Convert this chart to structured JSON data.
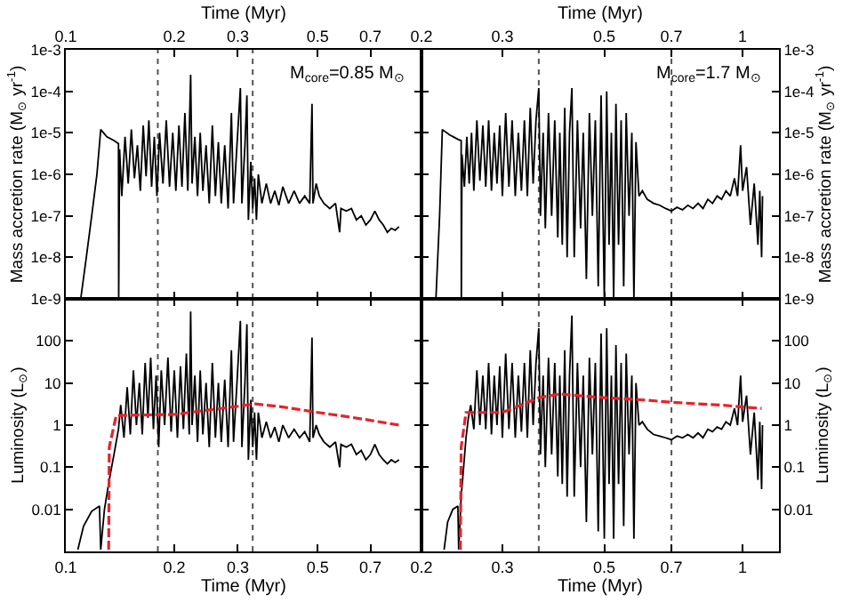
{
  "chart_data": [
    {
      "type": "line",
      "xlabel": "Time (Myr)",
      "ylabel": "Mass accretion rate (M$_{⊙}$ yr$^{-1}$)",
      "log": "xy",
      "xlim": [
        0.1,
        0.97
      ],
      "ylim": [
        1e-09,
        0.001
      ],
      "xticks": [
        0.1,
        0.2,
        0.3,
        0.5,
        0.7
      ],
      "yticks": [
        {
          "value": 1e-09,
          "label": "1e-9"
        },
        {
          "value": 1e-08,
          "label": "1e-8"
        },
        {
          "value": 1e-07,
          "label": "1e-7"
        },
        {
          "value": 1e-06,
          "label": "1e-6"
        },
        {
          "value": 1e-05,
          "label": "1e-5"
        },
        {
          "value": 0.0001,
          "label": "1e-4"
        },
        {
          "value": 0.001,
          "label": "1e-3"
        }
      ],
      "annotations": [
        "M$_{core}$=0.85 M$_{⊙}$"
      ],
      "ref_lines": [
        {
          "axis": "x",
          "value": 0.18,
          "color": "#555555",
          "line_style": "dotted"
        },
        {
          "axis": "x",
          "value": 0.33,
          "color": "#555555",
          "line_style": "dotted"
        }
      ],
      "series": [
        {
          "color": "#000000",
          "x": [
            0.11,
            0.114,
            0.118,
            0.122,
            0.125,
            0.13,
            0.136,
            0.14,
            0.1402,
            0.141,
            0.143,
            0.146,
            0.149,
            0.152,
            0.155,
            0.158,
            0.161,
            0.164,
            0.167,
            0.17,
            0.173,
            0.176,
            0.179,
            0.182,
            0.186,
            0.19,
            0.194,
            0.198,
            0.202,
            0.206,
            0.21,
            0.214,
            0.218,
            0.222,
            0.224,
            0.228,
            0.232,
            0.236,
            0.24,
            0.245,
            0.25,
            0.255,
            0.26,
            0.265,
            0.27,
            0.276,
            0.282,
            0.288,
            0.292,
            0.298,
            0.305,
            0.308,
            0.314,
            0.318,
            0.321,
            0.326,
            0.33,
            0.334,
            0.338,
            0.342,
            0.35,
            0.36,
            0.37,
            0.38,
            0.39,
            0.4,
            0.415,
            0.43,
            0.445,
            0.46,
            0.475,
            0.482,
            0.485,
            0.495,
            0.505,
            0.52,
            0.54,
            0.56,
            0.575,
            0.58,
            0.6,
            0.62,
            0.64,
            0.66,
            0.68,
            0.7,
            0.72,
            0.74,
            0.76,
            0.78,
            0.8,
            0.82,
            0.84
          ],
          "values": [
            1e-09,
            1e-08,
            1e-07,
            1e-06,
            1.2e-05,
            8e-06,
            6.5e-06,
            5.5e-06,
            1e-09,
            4e-06,
            3e-07,
            8e-06,
            6e-07,
            1.2e-05,
            8e-07,
            5e-06,
            4e-07,
            1.5e-05,
            9e-07,
            2e-05,
            5e-07,
            8e-06,
            3e-07,
            1e-05,
            6e-07,
            2e-05,
            5e-07,
            1e-05,
            4e-07,
            1.5e-05,
            5e-07,
            3e-05,
            4e-07,
            0.00025,
            6e-07,
            8e-06,
            3e-07,
            1e-05,
            4e-07,
            5e-06,
            2e-07,
            1.5e-05,
            3e-07,
            6e-06,
            2e-07,
            5e-06,
            1.5e-07,
            3e-05,
            2e-07,
            4e-06,
            0.00012,
            2e-07,
            5e-06,
            8e-05,
            8e-08,
            2e-06,
            1.5e-07,
            8e-07,
            8e-08,
            1e-06,
            2e-07,
            6e-07,
            2e-07,
            4e-07,
            1.8e-07,
            5e-07,
            2e-07,
            4e-07,
            2e-07,
            3e-07,
            2e-07,
            5e-05,
            2e-07,
            6e-07,
            3e-07,
            2e-07,
            1.5e-07,
            2e-07,
            4e-08,
            1.5e-07,
            1.3e-07,
            1.5e-07,
            8e-08,
            1e-07,
            6e-08,
            8e-08,
            1.3e-07,
            8e-08,
            6e-08,
            4e-08,
            5e-08,
            4.5e-08,
            5.5e-08
          ]
        }
      ]
    },
    {
      "type": "line",
      "xlabel": "Time (Myr)",
      "ylabel": "Mass accretion rate (M$_{⊙}$ yr$^{-1}$)",
      "log": "xy",
      "xlim": [
        0.2,
        1.2
      ],
      "ylim": [
        1e-09,
        0.001
      ],
      "xticks": [
        0.2,
        0.3,
        0.5,
        0.7,
        1
      ],
      "yticks": [
        {
          "value": 1e-09,
          "label": "1e-9"
        },
        {
          "value": 1e-08,
          "label": "1e-8"
        },
        {
          "value": 1e-07,
          "label": "1e-7"
        },
        {
          "value": 1e-06,
          "label": "1e-6"
        },
        {
          "value": 1e-05,
          "label": "1e-5"
        },
        {
          "value": 0.0001,
          "label": "1e-4"
        },
        {
          "value": 0.001,
          "label": "1e-3"
        }
      ],
      "annotations": [
        "M$_{core}$=1.7 M$_{⊙}$"
      ],
      "ref_lines": [
        {
          "axis": "x",
          "value": 0.36,
          "color": "#555555",
          "line_style": "dotted"
        },
        {
          "axis": "x",
          "value": 0.7,
          "color": "#555555",
          "line_style": "dotted"
        }
      ],
      "series": [
        {
          "color": "#000000",
          "x": [
            0.215,
            0.219,
            0.222,
            0.23,
            0.24,
            0.244,
            0.2442,
            0.245,
            0.248,
            0.251,
            0.254,
            0.257,
            0.26,
            0.264,
            0.268,
            0.272,
            0.276,
            0.28,
            0.284,
            0.288,
            0.292,
            0.296,
            0.3,
            0.305,
            0.31,
            0.315,
            0.32,
            0.325,
            0.33,
            0.335,
            0.34,
            0.345,
            0.35,
            0.355,
            0.36,
            0.363,
            0.368,
            0.372,
            0.378,
            0.384,
            0.39,
            0.396,
            0.4,
            0.405,
            0.41,
            0.415,
            0.42,
            0.425,
            0.43,
            0.437,
            0.444,
            0.45,
            0.457,
            0.464,
            0.471,
            0.478,
            0.485,
            0.492,
            0.5,
            0.506,
            0.512,
            0.518,
            0.524,
            0.53,
            0.537,
            0.544,
            0.551,
            0.558,
            0.566,
            0.574,
            0.58,
            0.586,
            0.595,
            0.605,
            0.62,
            0.64,
            0.66,
            0.68,
            0.7,
            0.72,
            0.74,
            0.76,
            0.78,
            0.8,
            0.82,
            0.84,
            0.86,
            0.88,
            0.9,
            0.92,
            0.94,
            0.96,
            0.975,
            0.99,
            1.0,
            1.02,
            1.04,
            1.06,
            1.08,
            1.09,
            1.1,
            1.105
          ],
          "values": [
            1e-09,
            1e-07,
            1.2e-05,
            9e-06,
            7e-06,
            6.5e-06,
            1e-09,
            3e-06,
            5e-07,
            8e-06,
            6e-07,
            1e-05,
            4e-07,
            2e-05,
            7e-07,
            1.5e-05,
            5e-07,
            2e-05,
            4e-07,
            1e-05,
            6e-07,
            1.5e-05,
            3e-07,
            3e-05,
            5e-07,
            2e-05,
            3e-07,
            1e-05,
            4e-07,
            2e-05,
            3e-07,
            4e-05,
            6e-07,
            2e-05,
            0.00012,
            1e-07,
            1e-05,
            5e-08,
            3e-05,
            1e-07,
            2e-05,
            3e-08,
            1e-05,
            2e-08,
            4e-05,
            1e-08,
            1e-05,
            0.00012,
            1e-08,
            2e-05,
            5e-08,
            1e-05,
            3e-09,
            3e-05,
            1e-07,
            2e-05,
            2e-09,
            8e-05,
            1e-09,
            0.0001,
            2e-08,
            1e-05,
            1e-09,
            5e-05,
            2e-08,
            2e-05,
            2e-09,
            3e-05,
            1e-07,
            1e-05,
            1e-09,
            6e-06,
            3e-07,
            4e-07,
            2.5e-07,
            2e-07,
            1.8e-07,
            1.5e-07,
            1.3e-07,
            1.6e-07,
            1.4e-07,
            1.8e-07,
            1.5e-07,
            2e-07,
            1.5e-07,
            2.5e-07,
            2e-07,
            3e-07,
            2.5e-07,
            4e-07,
            3e-07,
            8e-07,
            3e-07,
            5e-06,
            4e-07,
            1.5e-06,
            6e-08,
            6e-07,
            2e-08,
            4e-07,
            1e-08,
            3e-07
          ]
        }
      ]
    },
    {
      "type": "line",
      "xlabel": "Time (Myr)",
      "ylabel": "Luminosity (L$_{⊙}$)",
      "log": "xy",
      "xlim": [
        0.1,
        0.97
      ],
      "ylim": [
        0.001,
        1000
      ],
      "xticks": [
        0.1,
        0.2,
        0.3,
        0.5,
        0.7
      ],
      "yticks": [
        0.01,
        0.1,
        1,
        10,
        100
      ],
      "ref_lines": [
        {
          "axis": "x",
          "value": 0.18,
          "color": "#555555",
          "line_style": "dotted"
        },
        {
          "axis": "x",
          "value": 0.33,
          "color": "#555555",
          "line_style": "dotted"
        }
      ],
      "series": [
        {
          "color": "#000000",
          "x": [
            0.108,
            0.112,
            0.118,
            0.124,
            0.125,
            0.128,
            0.132,
            0.136,
            0.14,
            0.142,
            0.145,
            0.148,
            0.151,
            0.154,
            0.157,
            0.16,
            0.163,
            0.166,
            0.169,
            0.172,
            0.175,
            0.178,
            0.181,
            0.184,
            0.188,
            0.192,
            0.196,
            0.2,
            0.204,
            0.208,
            0.212,
            0.216,
            0.22,
            0.222,
            0.224,
            0.228,
            0.232,
            0.236,
            0.24,
            0.245,
            0.25,
            0.255,
            0.26,
            0.265,
            0.27,
            0.276,
            0.282,
            0.288,
            0.292,
            0.298,
            0.305,
            0.308,
            0.314,
            0.318,
            0.321,
            0.326,
            0.33,
            0.334,
            0.338,
            0.342,
            0.35,
            0.36,
            0.37,
            0.38,
            0.39,
            0.4,
            0.415,
            0.43,
            0.445,
            0.46,
            0.475,
            0.482,
            0.485,
            0.495,
            0.505,
            0.52,
            0.54,
            0.56,
            0.575,
            0.58,
            0.6,
            0.62,
            0.64,
            0.66,
            0.68,
            0.7,
            0.72,
            0.74,
            0.76,
            0.78,
            0.8,
            0.82,
            0.84
          ],
          "values": [
            0.0011,
            0.004,
            0.009,
            0.012,
            0.0011,
            0.01,
            0.05,
            0.2,
            0.8,
            3,
            0.5,
            8,
            0.6,
            20,
            1,
            10,
            0.6,
            30,
            1.5,
            40,
            0.8,
            15,
            0.3,
            20,
            1,
            40,
            0.7,
            20,
            0.5,
            25,
            0.8,
            50,
            0.6,
            500,
            1,
            15,
            0.4,
            20,
            0.6,
            10,
            0.3,
            30,
            0.5,
            10,
            0.4,
            12,
            0.3,
            60,
            0.4,
            8,
            300,
            0.3,
            10,
            250,
            0.15,
            4,
            0.3,
            2,
            0.15,
            2,
            0.5,
            1.2,
            0.5,
            0.9,
            0.4,
            1,
            0.5,
            0.8,
            0.5,
            0.7,
            0.4,
            120,
            0.5,
            1,
            0.6,
            0.4,
            0.3,
            0.4,
            0.1,
            0.35,
            0.3,
            0.35,
            0.2,
            0.25,
            0.15,
            0.2,
            0.35,
            0.2,
            0.15,
            0.12,
            0.15,
            0.13,
            0.15
          ]
        },
        {
          "color": "#e8222a",
          "line_style": "dashed",
          "x": [
            0.1315,
            0.132,
            0.138,
            0.2,
            0.25,
            0.3,
            0.335,
            0.4,
            0.5,
            0.6,
            0.7,
            0.84
          ],
          "values": [
            0.0011,
            0.3,
            1.7,
            1.8,
            2.3,
            2.8,
            3.2,
            2.7,
            2.0,
            1.6,
            1.3,
            1.0
          ]
        }
      ]
    },
    {
      "type": "line",
      "xlabel": "Time (Myr)",
      "ylabel": "Luminosity (L$_{⊙}$)",
      "log": "xy",
      "xlim": [
        0.2,
        1.2
      ],
      "ylim": [
        0.001,
        1000
      ],
      "xticks": [
        0.2,
        0.3,
        0.5,
        0.7,
        1
      ],
      "yticks": [
        0.01,
        0.1,
        1,
        10,
        100
      ],
      "ref_lines": [
        {
          "axis": "x",
          "value": 0.36,
          "color": "#555555",
          "line_style": "dotted"
        },
        {
          "axis": "x",
          "value": 0.7,
          "color": "#555555",
          "line_style": "dotted"
        }
      ],
      "series": [
        {
          "color": "#000000",
          "x": [
            0.224,
            0.228,
            0.234,
            0.24,
            0.241,
            0.244,
            0.247,
            0.25,
            0.253,
            0.256,
            0.26,
            0.264,
            0.268,
            0.272,
            0.276,
            0.28,
            0.284,
            0.288,
            0.292,
            0.296,
            0.3,
            0.305,
            0.31,
            0.315,
            0.32,
            0.325,
            0.33,
            0.335,
            0.34,
            0.345,
            0.35,
            0.355,
            0.36,
            0.363,
            0.368,
            0.372,
            0.378,
            0.384,
            0.39,
            0.396,
            0.4,
            0.405,
            0.41,
            0.415,
            0.42,
            0.425,
            0.43,
            0.437,
            0.444,
            0.45,
            0.457,
            0.464,
            0.471,
            0.478,
            0.485,
            0.492,
            0.5,
            0.506,
            0.512,
            0.518,
            0.524,
            0.53,
            0.537,
            0.544,
            0.551,
            0.558,
            0.566,
            0.574,
            0.58,
            0.586,
            0.595,
            0.605,
            0.62,
            0.64,
            0.66,
            0.68,
            0.7,
            0.72,
            0.74,
            0.76,
            0.78,
            0.8,
            0.82,
            0.84,
            0.86,
            0.88,
            0.9,
            0.92,
            0.94,
            0.96,
            0.975,
            0.99,
            1.0,
            1.02,
            1.04,
            1.06,
            1.08,
            1.09,
            1.1,
            1.105
          ],
          "values": [
            0.0011,
            0.005,
            0.01,
            0.012,
            0.0011,
            0.02,
            0.1,
            0.5,
            1.5,
            3,
            0.8,
            20,
            1,
            15,
            0.8,
            30,
            0.6,
            15,
            1,
            25,
            0.5,
            50,
            0.8,
            30,
            0.5,
            15,
            0.7,
            30,
            0.5,
            60,
            1,
            30,
            200,
            0.2,
            15,
            0.1,
            40,
            0.2,
            30,
            0.06,
            15,
            0.04,
            60,
            0.02,
            15,
            400,
            0.02,
            30,
            0.1,
            15,
            0.005,
            40,
            0.2,
            30,
            0.003,
            150,
            0.002,
            200,
            0.04,
            15,
            0.002,
            80,
            0.04,
            30,
            0.004,
            50,
            0.2,
            15,
            0.002,
            10,
            1,
            1.2,
            0.8,
            0.6,
            0.55,
            0.5,
            0.45,
            0.55,
            0.5,
            0.6,
            0.5,
            0.65,
            0.5,
            0.8,
            0.7,
            0.9,
            0.8,
            1.2,
            1,
            2.5,
            1,
            15,
            1.2,
            5,
            0.2,
            2,
            0.05,
            1.2,
            0.03,
            1
          ]
        },
        {
          "color": "#e8222a",
          "line_style": "dashed",
          "x": [
            0.243,
            0.244,
            0.25,
            0.3,
            0.33,
            0.36,
            0.4,
            0.44,
            0.5,
            0.6,
            0.7,
            0.8,
            0.9,
            1.0,
            1.1
          ],
          "values": [
            0.0011,
            0.3,
            2,
            2,
            3,
            4.5,
            5.5,
            5,
            4.5,
            4,
            3.5,
            3.2,
            3,
            2.7,
            2.5
          ]
        }
      ]
    }
  ]
}
